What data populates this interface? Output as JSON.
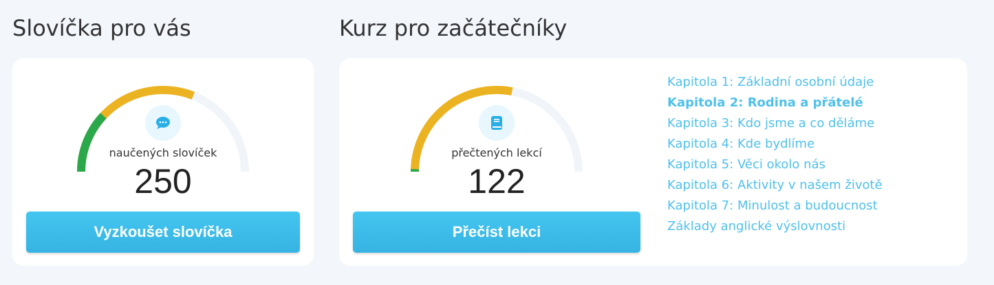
{
  "words": {
    "title": "Slovíčka pro vás",
    "label": "naučených slovíček",
    "count": "250",
    "button": "Vyzkoušet slovíčka",
    "icon": "chat-bubble-icon",
    "gauge": {
      "green_fraction": 0.24,
      "yellow_fraction": 0.62
    }
  },
  "course": {
    "title": "Kurz pro začátečníky",
    "label": "přečtených lekcí",
    "count": "122",
    "button": "Přečíst lekci",
    "icon": "book-icon",
    "gauge": {
      "green_fraction": 0.01,
      "yellow_fraction": 0.56
    },
    "chapters": [
      {
        "label": "Kapitola 1: Základní osobní údaje",
        "active": false
      },
      {
        "label": "Kapitola 2: Rodina a přátelé",
        "active": true
      },
      {
        "label": "Kapitola 3: Kdo jsme a co děláme",
        "active": false
      },
      {
        "label": "Kapitola 4: Kde bydlíme",
        "active": false
      },
      {
        "label": "Kapitola 5: Věci okolo nás",
        "active": false
      },
      {
        "label": "Kapitola 6: Aktivity v našem životě",
        "active": false
      },
      {
        "label": "Kapitola 7: Minulost a budoucnost",
        "active": false
      },
      {
        "label": "Základy anglické výslovnosti",
        "active": false
      }
    ]
  },
  "colors": {
    "green": "#2ba84a",
    "yellow": "#ebb322",
    "track": "#f1f5fa",
    "accent": "#3bbbe8",
    "link": "#4fc0ec"
  }
}
